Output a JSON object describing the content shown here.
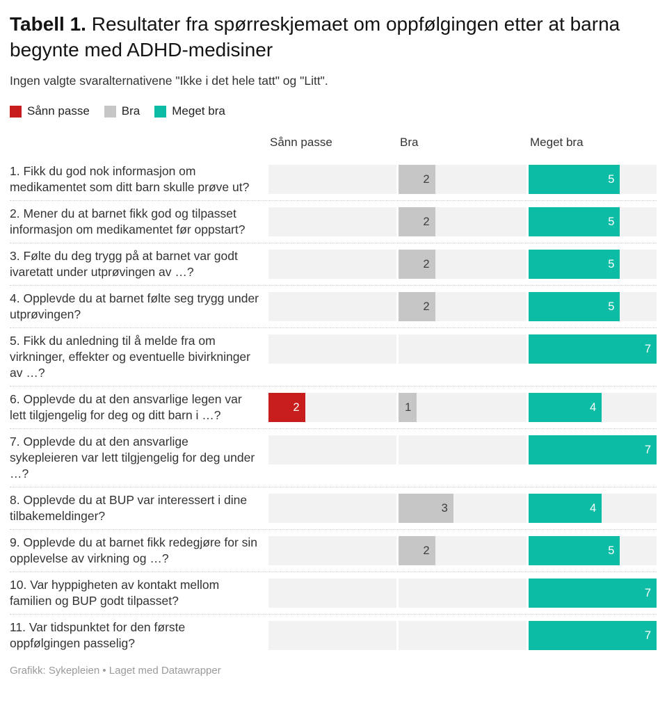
{
  "title": {
    "prefix": "Tabell 1.",
    "rest": " Resultater fra spørreskjemaet om oppfølgingen etter at barna begynte med ADHD-medisiner"
  },
  "subtitle": "Ingen valgte svaralternativene \"Ikke i det hele tatt\" og \"Litt\".",
  "legend": [
    {
      "label": "Sånn passe",
      "color": "#c71e1d"
    },
    {
      "label": "Bra",
      "color": "#c6c6c6"
    },
    {
      "label": "Meget bra",
      "color": "#0dbca4"
    }
  ],
  "columns": [
    "Sånn passe",
    "Bra",
    "Meget bra"
  ],
  "colors": {
    "track": "#f2f2f2",
    "separator": "#cccccc",
    "red": "#c71e1d",
    "gray": "#c6c6c6",
    "teal": "#0dbca4"
  },
  "chart_data": {
    "type": "bar",
    "title": "Tabell 1. Resultater fra spørreskjemaet om oppfølgingen etter at barna begynte med ADHD-medisiner",
    "subtitle": "Ingen valgte svaralternativene \"Ikke i det hele tatt\" og \"Litt\".",
    "value_scale": [
      0,
      7
    ],
    "legend_position": "top",
    "categories": [
      "1. Fikk du god nok informasjon om medikamentet som ditt barn skulle prøve ut?",
      "2. Mener du at barnet fikk god og tilpasset informasjon om medikamentet før oppstart?",
      "3. Følte du deg trygg på at barnet var godt ivaretatt under utprøvingen av …?",
      "4. Opplevde du at barnet følte seg trygg under utprøvingen?",
      "5. Fikk du anledning til å melde fra om virkninger, effekter og eventuelle bivirkninger av …?",
      "6. Opplevde du at den ansvarlige legen var lett tilgjengelig for deg og ditt barn i …?",
      "7. Opplevde du at den ansvarlige sykepleieren var lett tilgjengelig for deg under …?",
      "8. Opplevde du at BUP var interessert i dine tilbakemeldinger?",
      "9. Opplevde du at barnet fikk redegjøre for sin opplevelse av virkning og …?",
      "10. Var hyppigheten av kontakt mellom familien og BUP godt tilpasset?",
      "11. Var tidspunktet for den første oppfølgingen passelig?"
    ],
    "series": [
      {
        "name": "Sånn passe",
        "color": "#c71e1d",
        "label_color": "#ffffff",
        "values": [
          0,
          0,
          0,
          0,
          0,
          2,
          0,
          0,
          0,
          0,
          0
        ]
      },
      {
        "name": "Bra",
        "color": "#c6c6c6",
        "label_color": "#3d3d3d",
        "values": [
          2,
          2,
          2,
          2,
          0,
          1,
          0,
          3,
          2,
          0,
          0
        ]
      },
      {
        "name": "Meget bra",
        "color": "#0dbca4",
        "label_color": "#ffffff",
        "values": [
          5,
          5,
          5,
          5,
          7,
          4,
          7,
          4,
          5,
          7,
          7
        ]
      }
    ]
  },
  "footer": "Grafikk: Sykepleien • Laget med Datawrapper"
}
